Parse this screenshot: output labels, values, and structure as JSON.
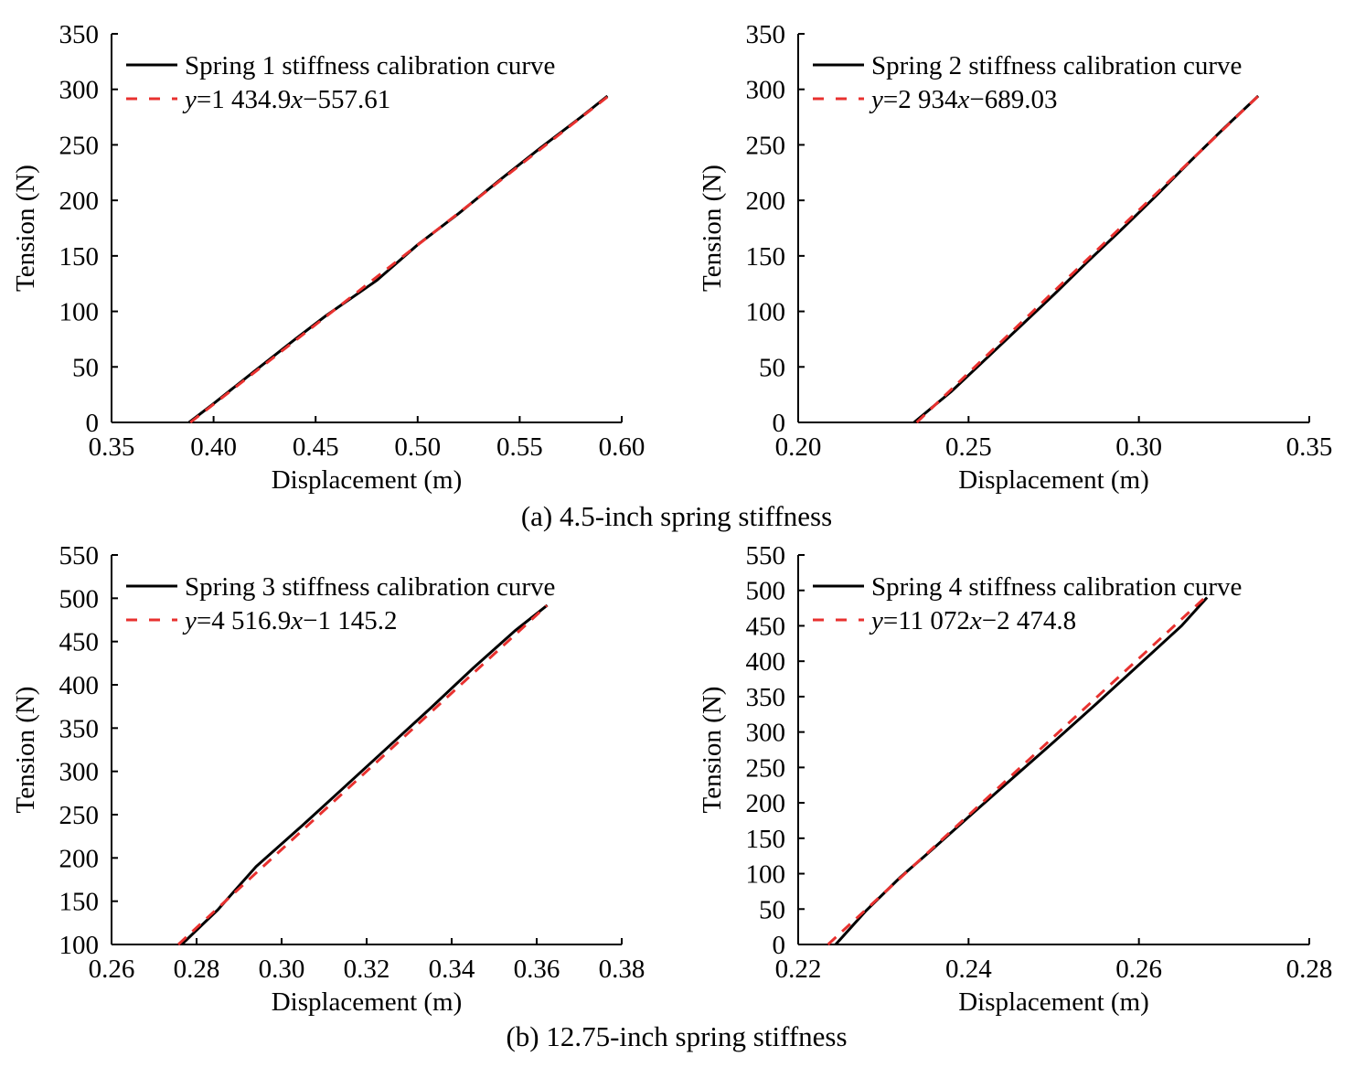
{
  "colors": {
    "measured": "#000000",
    "fit": "#e8312f"
  },
  "captions": {
    "top": "(a) 4.5-inch spring stiffness",
    "bottom": "(b) 12.75-inch spring stiffness"
  },
  "chart_data": [
    {
      "type": "line",
      "xlabel": "Displacement (m)",
      "ylabel": "Tension (N)",
      "xlim": [
        0.35,
        0.6
      ],
      "ylim": [
        0,
        350
      ],
      "xticks": [
        "0.35",
        "0.40",
        "0.45",
        "0.50",
        "0.55",
        "0.60"
      ],
      "yticks": [
        "0",
        "50",
        "100",
        "150",
        "200",
        "250",
        "300",
        "350"
      ],
      "legend_position": "top-left",
      "series": [
        {
          "name": "Spring 1 stiffness calibration curve",
          "style": "solid",
          "x": [
            0.388,
            0.4,
            0.42,
            0.44,
            0.455,
            0.48,
            0.5,
            0.52,
            0.54,
            0.56,
            0.58,
            0.593
          ],
          "y": [
            0,
            17,
            46,
            75,
            96,
            128,
            160,
            188,
            218,
            247,
            275,
            294
          ]
        },
        {
          "name": "y=1 434.9x−557.61",
          "style": "dashed",
          "legend_parts": {
            "y": "y",
            "eq": "=1 434.9",
            "x": "x",
            "rest": "−557.61"
          },
          "x": [
            0.3886,
            0.5929
          ],
          "y": [
            0,
            293.1
          ]
        }
      ]
    },
    {
      "type": "line",
      "xlabel": "Displacement (m)",
      "ylabel": "Tension (N)",
      "xlim": [
        0.2,
        0.35
      ],
      "ylim": [
        0,
        350
      ],
      "xticks": [
        "0.20",
        "0.25",
        "0.30",
        "0.35"
      ],
      "yticks": [
        "0",
        "50",
        "100",
        "150",
        "200",
        "250",
        "300",
        "350"
      ],
      "legend_position": "top-left",
      "series": [
        {
          "name": "Spring 2 stiffness calibration curve",
          "style": "solid",
          "x": [
            0.234,
            0.245,
            0.255,
            0.265,
            0.275,
            0.285,
            0.295,
            0.305,
            0.315,
            0.325,
            0.335
          ],
          "y": [
            0,
            28,
            57,
            86,
            115,
            145,
            174,
            204,
            235,
            265,
            294
          ]
        },
        {
          "name": "y=2 934x−689.03",
          "style": "dashed",
          "legend_parts": {
            "y": "y",
            "eq": "=2 934",
            "x": "x",
            "rest": "−689.03"
          },
          "x": [
            0.2348,
            0.335
          ],
          "y": [
            0,
            293.9
          ]
        }
      ]
    },
    {
      "type": "line",
      "xlabel": "Displacement (m)",
      "ylabel": "Tension (N)",
      "xlim": [
        0.26,
        0.38
      ],
      "ylim": [
        100,
        550
      ],
      "xticks": [
        "0.26",
        "0.28",
        "0.30",
        "0.32",
        "0.34",
        "0.36",
        "0.38"
      ],
      "yticks": [
        "100",
        "150",
        "200",
        "250",
        "300",
        "350",
        "400",
        "450",
        "500",
        "550"
      ],
      "legend_position": "top-left",
      "series": [
        {
          "name": "Spring 3 stiffness calibration curve",
          "style": "solid",
          "x": [
            0.2765,
            0.285,
            0.294,
            0.305,
            0.315,
            0.325,
            0.335,
            0.345,
            0.355,
            0.3625
          ],
          "y": [
            100,
            140,
            190,
            238,
            283,
            328,
            373,
            419,
            463,
            492
          ]
        },
        {
          "name": "y=4 516.9x−1 145.2",
          "style": "dashed",
          "legend_parts": {
            "y": "y",
            "eq": "=4 516.9",
            "x": "x",
            "rest": "−1 145.2"
          },
          "x": [
            0.2757,
            0.3624
          ],
          "y": [
            100,
            491.7
          ]
        }
      ]
    },
    {
      "type": "line",
      "xlabel": "Displacement (m)",
      "ylabel": "Tension (N)",
      "xlim": [
        0.22,
        0.28
      ],
      "ylim": [
        0,
        550
      ],
      "xticks": [
        "0.22",
        "0.24",
        "0.26",
        "0.28"
      ],
      "yticks": [
        "0",
        "50",
        "100",
        "150",
        "200",
        "250",
        "300",
        "350",
        "400",
        "450",
        "500",
        "550"
      ],
      "legend_position": "top-left",
      "series": [
        {
          "name": "Spring 4 stiffness calibration curve",
          "style": "solid",
          "x": [
            0.2244,
            0.228,
            0.232,
            0.236,
            0.24,
            0.245,
            0.25,
            0.255,
            0.26,
            0.265,
            0.268
          ],
          "y": [
            0,
            48,
            95,
            137,
            180,
            233,
            286,
            340,
            395,
            450,
            490
          ]
        },
        {
          "name": "y=11 072x−2 474.8",
          "style": "dashed",
          "legend_parts": {
            "y": "y",
            "eq": "=11 072",
            "x": "x",
            "rest": "−2 474.8"
          },
          "x": [
            0.2235,
            0.268
          ],
          "y": [
            0,
            492.5
          ]
        }
      ]
    }
  ]
}
